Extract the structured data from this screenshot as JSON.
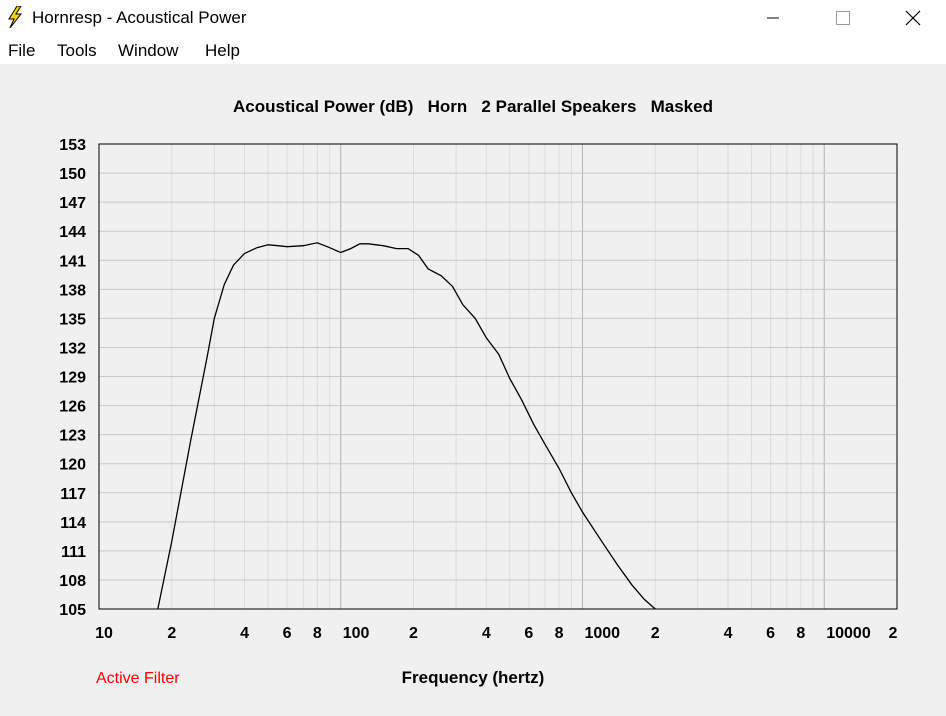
{
  "window": {
    "title": "Hornresp - Acoustical Power",
    "icon": "lightning-bolt-icon",
    "controls": [
      "minimize-icon",
      "maximize-icon",
      "close-icon"
    ]
  },
  "menu": {
    "items": [
      "File",
      "Tools",
      "Window",
      "Help"
    ]
  },
  "status": {
    "active_filter": "Active Filter",
    "active_filter_color": "#ff0000"
  },
  "chart_data": {
    "type": "line",
    "title": "Acoustical Power (dB)   Horn   2 Parallel Speakers   Masked",
    "xlabel": "Frequency (hertz)",
    "ylabel": "",
    "x_scale": "log",
    "xlim": [
      10,
      20000
    ],
    "ylim": [
      105,
      153
    ],
    "grid": true,
    "y_ticks": [
      105,
      108,
      111,
      114,
      117,
      120,
      123,
      126,
      129,
      132,
      135,
      138,
      141,
      144,
      147,
      150,
      153
    ],
    "x_tick_labels": [
      {
        "x": 10,
        "label": "10"
      },
      {
        "x": 20,
        "label": "2"
      },
      {
        "x": 40,
        "label": "4"
      },
      {
        "x": 60,
        "label": "6"
      },
      {
        "x": 80,
        "label": "8"
      },
      {
        "x": 100,
        "label": "100"
      },
      {
        "x": 200,
        "label": "2"
      },
      {
        "x": 400,
        "label": "4"
      },
      {
        "x": 600,
        "label": "6"
      },
      {
        "x": 800,
        "label": "8"
      },
      {
        "x": 1000,
        "label": "1000"
      },
      {
        "x": 2000,
        "label": "2"
      },
      {
        "x": 4000,
        "label": "4"
      },
      {
        "x": 6000,
        "label": "6"
      },
      {
        "x": 8000,
        "label": "8"
      },
      {
        "x": 10000,
        "label": "10000"
      },
      {
        "x": 20000,
        "label": "2"
      }
    ],
    "series": [
      {
        "color": "#000000",
        "x": [
          17.5,
          20,
          24,
          28,
          30,
          33,
          36,
          40,
          45,
          50,
          55,
          60,
          70,
          80,
          90,
          100,
          110,
          120,
          130,
          150,
          170,
          190,
          210,
          230,
          260,
          290,
          320,
          360,
          400,
          450,
          500,
          560,
          630,
          700,
          800,
          900,
          1000,
          1200,
          1400,
          1600,
          1800,
          2000
        ],
        "y": [
          105,
          112,
          122.5,
          131,
          135,
          138.5,
          140.5,
          141.7,
          142.3,
          142.6,
          142.5,
          142.4,
          142.5,
          142.8,
          142.3,
          141.8,
          142.2,
          142.7,
          142.7,
          142.5,
          142.2,
          142.2,
          141.5,
          140.1,
          139.4,
          138.3,
          136.4,
          135,
          133,
          131.3,
          128.8,
          126.6,
          124,
          122,
          119.5,
          117,
          115,
          112,
          109.5,
          107.5,
          106,
          105
        ]
      }
    ]
  }
}
